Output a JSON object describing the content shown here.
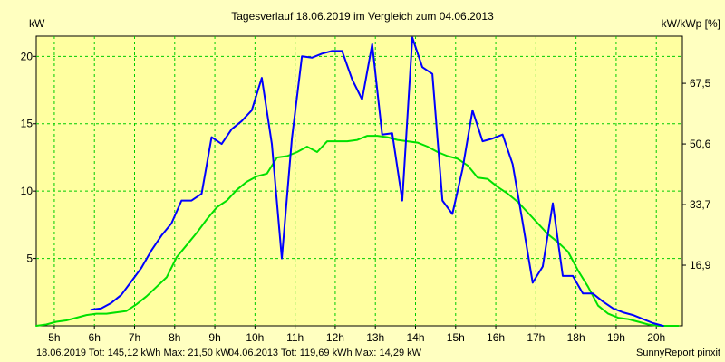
{
  "chart_data": {
    "type": "line",
    "title": "Tagesverlauf 18.06.2019 im Vergleich zum 04.06.2013",
    "ylabel_left": "kW",
    "ylabel_right": "kW/kWp [%]",
    "xlim": [
      4.55,
      20.65
    ],
    "ylim": [
      0,
      21.5
    ],
    "x_ticks": [
      5,
      6,
      7,
      8,
      9,
      10,
      11,
      12,
      13,
      14,
      15,
      16,
      17,
      18,
      19,
      20
    ],
    "x_tick_labels": [
      "5h",
      "6h",
      "7h",
      "8h",
      "9h",
      "10h",
      "11h",
      "12h",
      "13h",
      "14h",
      "15h",
      "16h",
      "17h",
      "18h",
      "19h",
      "20h"
    ],
    "y_ticks": [
      5,
      10,
      15,
      20
    ],
    "y_tick_labels": [
      "5",
      "10",
      "15",
      "20"
    ],
    "y_right_ticks": [
      4.5,
      9.0,
      13.5,
      18.0
    ],
    "y_right_tick_labels": [
      "16,9",
      "33,7",
      "50,6",
      "67,5"
    ],
    "grid": true,
    "series": [
      {
        "name": "18.06.2019",
        "color": "#0000ff",
        "x": [
          5.92,
          6.17,
          6.42,
          6.67,
          6.92,
          7.17,
          7.42,
          7.67,
          7.92,
          8.17,
          8.42,
          8.67,
          8.92,
          9.17,
          9.42,
          9.67,
          9.92,
          10.17,
          10.42,
          10.67,
          10.92,
          11.17,
          11.42,
          11.67,
          11.92,
          12.17,
          12.42,
          12.67,
          12.92,
          13.17,
          13.42,
          13.67,
          13.92,
          14.17,
          14.42,
          14.67,
          14.92,
          15.17,
          15.42,
          15.67,
          15.92,
          16.17,
          16.42,
          16.67,
          16.92,
          17.17,
          17.42,
          17.67,
          17.92,
          18.17,
          18.42,
          18.67,
          18.92,
          19.17,
          19.42,
          19.67,
          19.92,
          20.17
        ],
        "values": [
          1.2,
          1.3,
          1.7,
          2.3,
          3.3,
          4.3,
          5.6,
          6.7,
          7.6,
          9.3,
          9.3,
          9.8,
          14.0,
          13.5,
          14.6,
          15.2,
          16.0,
          18.4,
          13.5,
          5.0,
          13.9,
          20.0,
          19.9,
          20.2,
          20.4,
          20.4,
          18.3,
          16.8,
          20.9,
          14.2,
          14.3,
          9.3,
          21.4,
          19.2,
          18.7,
          9.3,
          8.3,
          11.6,
          16.0,
          13.7,
          13.9,
          14.2,
          12.0,
          7.7,
          3.2,
          4.4,
          9.1,
          3.7,
          3.7,
          2.4,
          2.4,
          1.8,
          1.3,
          1.0,
          0.8,
          0.5,
          0.2,
          0.0
        ]
      },
      {
        "name": "04.06.2013",
        "color": "#00e000",
        "x": [
          4.55,
          4.8,
          5.05,
          5.3,
          5.55,
          5.8,
          6.05,
          6.3,
          6.55,
          6.8,
          7.05,
          7.3,
          7.55,
          7.8,
          8.05,
          8.3,
          8.55,
          8.8,
          9.05,
          9.3,
          9.55,
          9.8,
          10.05,
          10.3,
          10.55,
          10.8,
          11.05,
          11.3,
          11.55,
          11.8,
          12.05,
          12.3,
          12.55,
          12.8,
          13.05,
          13.3,
          13.55,
          13.8,
          14.05,
          14.3,
          14.55,
          14.8,
          15.05,
          15.3,
          15.55,
          15.8,
          16.05,
          16.3,
          16.55,
          16.8,
          17.05,
          17.3,
          17.55,
          17.8,
          18.05,
          18.3,
          18.55,
          18.8,
          19.05,
          19.3,
          19.55,
          19.8,
          20.05,
          20.3,
          20.55
        ],
        "values": [
          0.0,
          0.1,
          0.3,
          0.4,
          0.6,
          0.8,
          0.9,
          0.9,
          1.0,
          1.1,
          1.6,
          2.2,
          2.9,
          3.6,
          5.1,
          6.0,
          6.9,
          7.9,
          8.8,
          9.3,
          10.1,
          10.7,
          11.1,
          11.3,
          12.5,
          12.6,
          12.9,
          13.3,
          12.9,
          13.7,
          13.7,
          13.7,
          13.8,
          14.1,
          14.1,
          14.0,
          13.8,
          13.7,
          13.6,
          13.3,
          12.9,
          12.6,
          12.4,
          11.9,
          11.0,
          10.9,
          10.3,
          9.8,
          9.2,
          8.4,
          7.6,
          6.8,
          6.2,
          5.5,
          4.1,
          2.9,
          1.5,
          0.9,
          0.6,
          0.5,
          0.3,
          0.1,
          0.0,
          0.0,
          0.0
        ]
      }
    ],
    "footer_series1_label": "18.06.2019 Tot: 145,12 kWh Max: 21,50 kW",
    "footer_series2_label": "04.06.2013 Tot: 119,69 kWh Max: 14,29 kW",
    "footer_right": "SunnyReport pinxit"
  },
  "colors": {
    "background": "#ffffc0",
    "plot_background": "#ffffa0",
    "grid": "#00cc00",
    "series1": "#0000ff",
    "series2": "#00e000",
    "footer_series1_text": "#0000ff",
    "footer_series2_text": "#00c000"
  }
}
